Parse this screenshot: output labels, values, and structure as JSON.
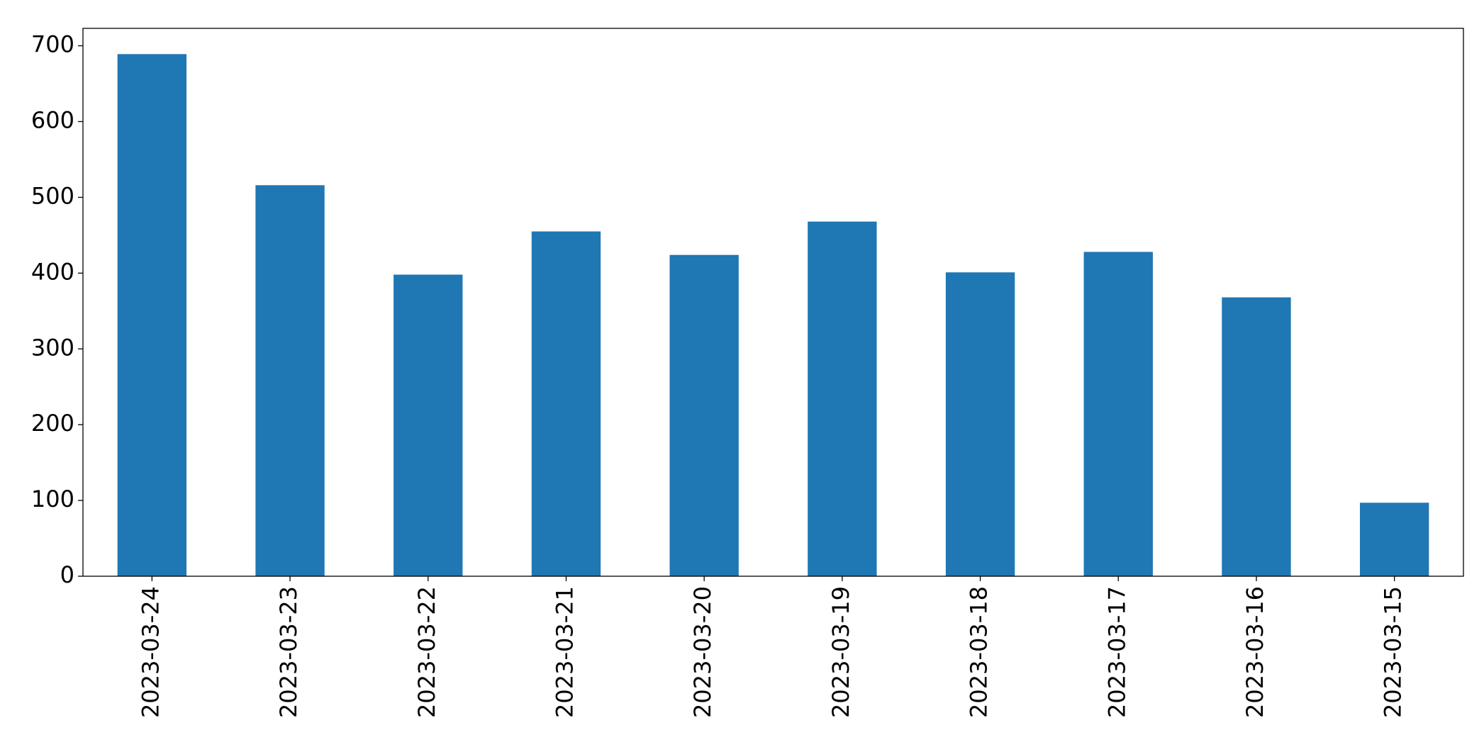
{
  "chart_data": {
    "type": "bar",
    "categories": [
      "2023-03-24",
      "2023-03-23",
      "2023-03-22",
      "2023-03-21",
      "2023-03-20",
      "2023-03-19",
      "2023-03-18",
      "2023-03-17",
      "2023-03-16",
      "2023-03-15"
    ],
    "values": [
      689,
      516,
      398,
      455,
      424,
      468,
      401,
      428,
      368,
      97
    ],
    "color": "#1f77b4",
    "ylim": [
      0,
      723
    ],
    "yticks": [
      0,
      100,
      200,
      300,
      400,
      500,
      600,
      700
    ],
    "grid": false
  }
}
